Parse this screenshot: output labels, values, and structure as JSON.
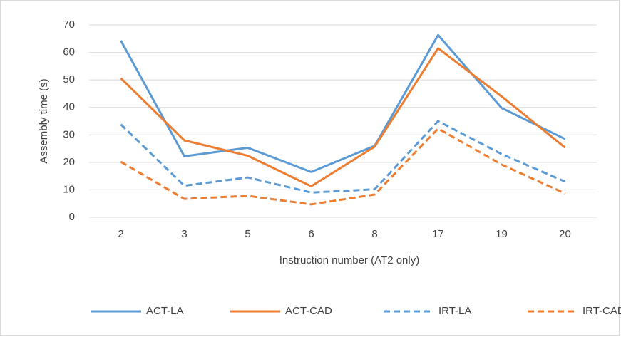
{
  "chart_data": {
    "type": "line",
    "x_label": "Instruction number (AT2 only)",
    "y_label": "Assembly time (s)",
    "categories": [
      "2",
      "3",
      "5",
      "6",
      "8",
      "17",
      "19",
      "20"
    ],
    "series": [
      {
        "name": "ACT-LA",
        "color": "#5b9bd5",
        "dash": false,
        "values": [
          64.3,
          22.2,
          25.3,
          16.5,
          26,
          66.3,
          39.8,
          28.5
        ]
      },
      {
        "name": "ACT-CAD",
        "color": "#ed7d31",
        "dash": false,
        "values": [
          50.6,
          28,
          22.4,
          11.3,
          25.7,
          61.5,
          44,
          25.4
        ]
      },
      {
        "name": "IRT-LA",
        "color": "#5b9bd5",
        "dash": true,
        "values": [
          33.8,
          11.5,
          14.5,
          9,
          10.2,
          35,
          23,
          13
        ]
      },
      {
        "name": "IRT-CAD",
        "color": "#ed7d31",
        "dash": true,
        "values": [
          20.2,
          6.7,
          7.8,
          4.7,
          8.3,
          32.3,
          19.2,
          8.7
        ]
      }
    ],
    "ylim": [
      0,
      70
    ],
    "yticks": [
      0,
      10,
      20,
      30,
      40,
      50,
      60,
      70
    ],
    "grid": true,
    "legend": "bottom"
  }
}
